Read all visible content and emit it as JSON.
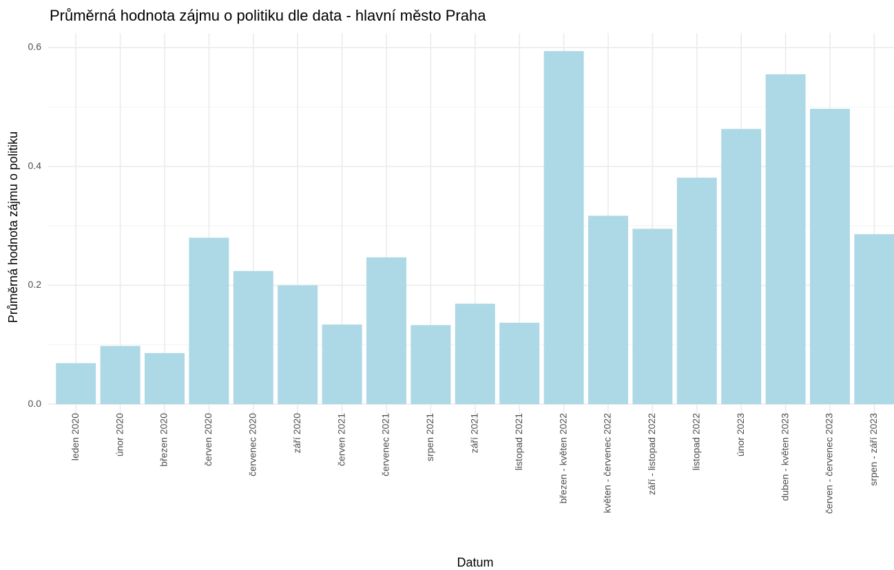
{
  "chart_data": {
    "type": "bar",
    "title": "Průměrná hodnota zájmu o politiku dle data - hlavní město Praha",
    "x_label": "Datum",
    "y_label": "Průměrná hodnota zájmu o politiku",
    "categories": [
      "leden 2020",
      "únor 2020",
      "březen 2020",
      "červen 2020",
      "červenec 2020",
      "září 2020",
      "červen 2021",
      "červenec 2021",
      "srpen 2021",
      "září 2021",
      "listopad 2021",
      "březen - květen 2022",
      "květen - červenec 2022",
      "září - listopad 2022",
      "listopad 2022",
      "únor 2023",
      "duben - květen 2023",
      "červen - červenec 2023",
      "srpen - září 2023"
    ],
    "values": [
      0.069,
      0.098,
      0.086,
      0.28,
      0.224,
      0.2,
      0.134,
      0.247,
      0.133,
      0.169,
      0.137,
      0.594,
      0.317,
      0.295,
      0.381,
      0.463,
      0.555,
      0.497,
      0.286
    ],
    "color": "#add8e6",
    "ylim": [
      -0.03,
      0.624
    ],
    "yticks": [
      {
        "value": 0,
        "label": "0.0"
      },
      0.2,
      0.4,
      0.6
    ],
    "minor_yticks": [
      0.1,
      0.3,
      0.5
    ],
    "grid": true
  }
}
